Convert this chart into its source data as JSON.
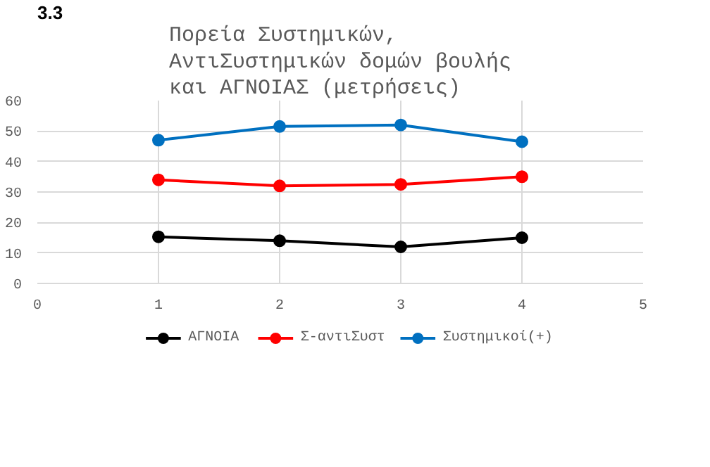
{
  "chart_data": {
    "type": "line",
    "title": "Πορεία Συστημικών, ΑντιΣυστημικών δομών βουλής και ΑΓΝΟΙΑΣ (μετρήσεις)",
    "annotations": [
      "3.3"
    ],
    "x": [
      1,
      2,
      3,
      4
    ],
    "xlim": [
      0,
      5
    ],
    "xticks": [
      0,
      1,
      2,
      3,
      4,
      5
    ],
    "ylim": [
      0,
      60
    ],
    "yticks": [
      0,
      10,
      20,
      30,
      40,
      50,
      60
    ],
    "grid": true,
    "legend": "bottom",
    "marker": "circle",
    "line_style": "solid",
    "series": [
      {
        "name": "ΑΓΝΟΙΑ",
        "color": "#000000",
        "values": [
          15.3,
          14,
          12,
          15
        ]
      },
      {
        "name": "Σ-αντιΣυστ",
        "color": "#ff0000",
        "values": [
          34,
          32,
          32.5,
          35
        ]
      },
      {
        "name": "Συστημικοί(+)",
        "color": "#0070c0",
        "values": [
          47,
          51.5,
          52,
          46.5
        ]
      }
    ]
  }
}
